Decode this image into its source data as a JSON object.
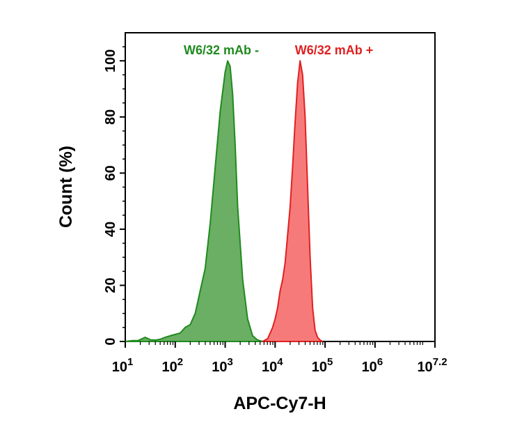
{
  "chart_data": {
    "type": "area",
    "xlabel": "APC-Cy7-H",
    "ylabel": "Count  (%)",
    "x_scale": "log10",
    "xlim": [
      10,
      15848931.92
    ],
    "ylim": [
      0,
      110
    ],
    "x_ticks": [
      {
        "value": 10,
        "base": "10",
        "exp": "1"
      },
      {
        "value": 100,
        "base": "10",
        "exp": "2"
      },
      {
        "value": 1000,
        "base": "10",
        "exp": "3"
      },
      {
        "value": 10000,
        "base": "10",
        "exp": "4"
      },
      {
        "value": 100000,
        "base": "10",
        "exp": "5"
      },
      {
        "value": 1000000,
        "base": "10",
        "exp": "6"
      },
      {
        "value": 15848931.92,
        "base": "10",
        "exp": "7.2"
      }
    ],
    "y_ticks": [
      0,
      20,
      40,
      60,
      80,
      100
    ],
    "series": [
      {
        "name": "W6/32 mAb -",
        "color": "#1f8a1f",
        "fill": "#6aaf63",
        "x": [
          10,
          14,
          18,
          25,
          32,
          40,
          50,
          63,
          79,
          100,
          126,
          158,
          200,
          224,
          251,
          282,
          316,
          398,
          501,
          631,
          794,
          1000,
          1122,
          1259,
          1413,
          1585,
          1778,
          2239,
          2818,
          3548,
          4467,
          5623
        ],
        "y": [
          0,
          0.3,
          0.3,
          1.5,
          0.6,
          0.5,
          0.8,
          1.5,
          2,
          2.5,
          3,
          5,
          6,
          8,
          10,
          14,
          18,
          26,
          42,
          62,
          82,
          96,
          100,
          98,
          88,
          70,
          48,
          22,
          8,
          2,
          0.5,
          0
        ]
      },
      {
        "name": "W6/32 mAb +",
        "color": "#e02020",
        "fill": "#f77a7a",
        "x": [
          5623,
          7079,
          8913,
          10000,
          11220,
          12589,
          14125,
          15849,
          17783,
          19953,
          22387,
          25119,
          28184,
          31623,
          35481,
          39811,
          44668,
          50119,
          56234,
          63096,
          70795,
          79433,
          89125
        ],
        "y": [
          0,
          1,
          5,
          8,
          12,
          18,
          22,
          28,
          38,
          48,
          62,
          78,
          92,
          100,
          95,
          80,
          55,
          30,
          12,
          4,
          1.5,
          0.5,
          0
        ]
      }
    ]
  }
}
